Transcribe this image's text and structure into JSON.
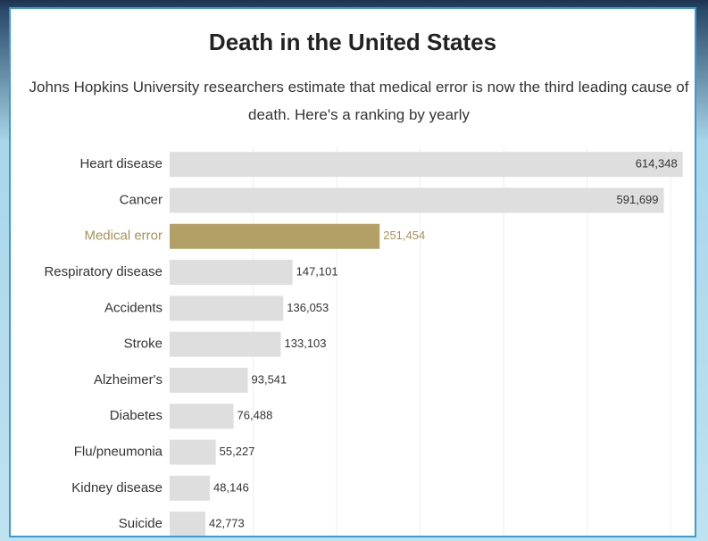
{
  "chart_data": {
    "type": "hbar",
    "title": "Death in the United States",
    "subtitle": "Johns Hopkins University researchers estimate that medical error is now the third leading cause of death. Here's a ranking by yearly",
    "categories": [
      "Heart disease",
      "Cancer",
      "Medical error",
      "Respiratory disease",
      "Accidents",
      "Stroke",
      "Alzheimer's",
      "Diabetes",
      "Flu/pneumonia",
      "Kidney disease",
      "Suicide"
    ],
    "values": [
      614348,
      591699,
      251454,
      147101,
      136053,
      133103,
      93541,
      76488,
      55227,
      48146,
      42773
    ],
    "value_labels": [
      "614,348",
      "591,699",
      "251,454",
      "147,101",
      "136,053",
      "133,103",
      "93,541",
      "76,488",
      "55,227",
      "48,146",
      "42,773"
    ],
    "colors": [
      "#dedede",
      "#dedede",
      "#b3a066",
      "#dedede",
      "#dedede",
      "#dedede",
      "#dedede",
      "#dedede",
      "#dedede",
      "#dedede",
      "#dedede"
    ],
    "label_colors": [
      "#333333",
      "#333333",
      "#a8925a",
      "#333333",
      "#333333",
      "#333333",
      "#333333",
      "#333333",
      "#333333",
      "#333333",
      "#333333"
    ],
    "xlim": [
      0,
      620000
    ],
    "xticks": [
      100000,
      200000,
      300000,
      400000,
      500000,
      600000
    ],
    "grid": true
  }
}
